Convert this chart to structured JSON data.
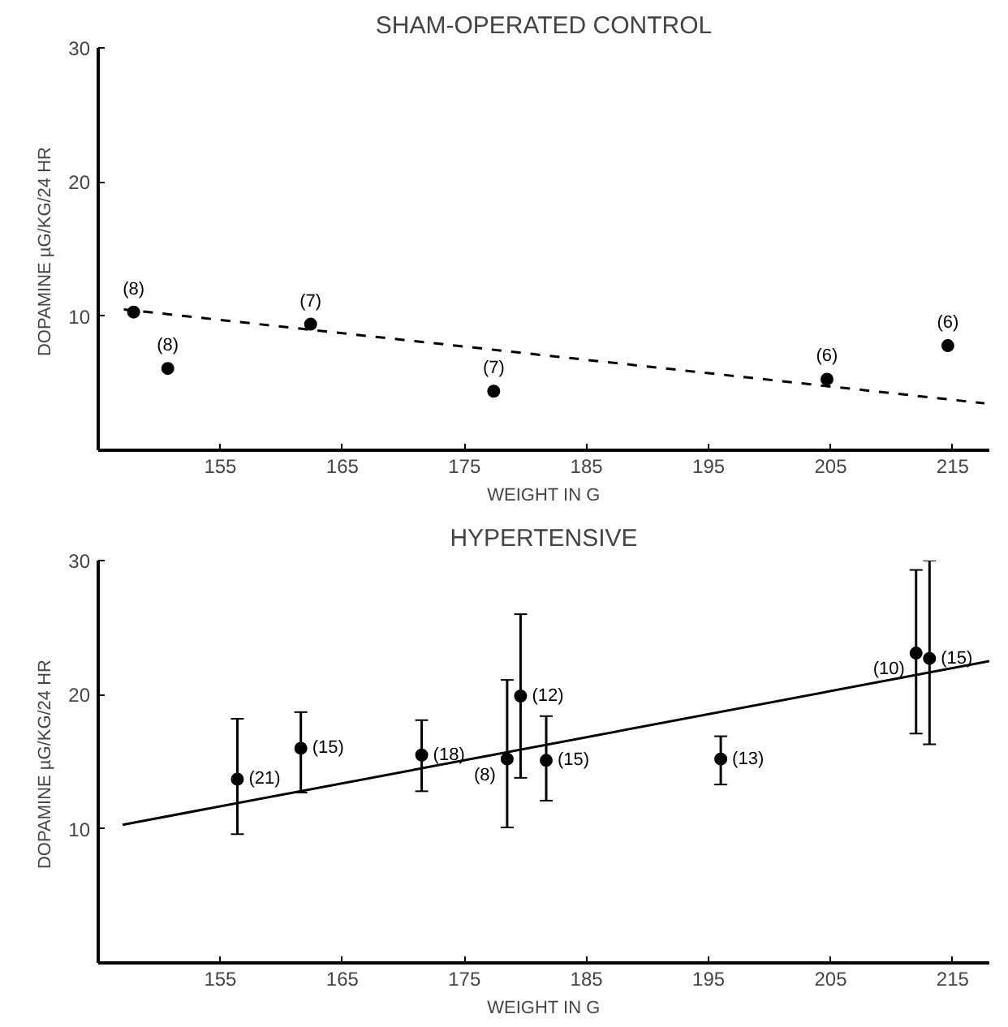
{
  "chart_data": [
    {
      "type": "scatter",
      "title": "SHAM-OPERATED CONTROL",
      "xlabel": "WEIGHT IN G",
      "ylabel": "DOPAMINE  µG/KG/24 HR",
      "xlim": [
        145,
        218
      ],
      "ylim": [
        0,
        30
      ],
      "xticks": [
        155,
        165,
        175,
        185,
        195,
        205,
        215
      ],
      "yticks": [
        10,
        20,
        30
      ],
      "grid": false,
      "series": [
        {
          "color": "#000000",
          "marker": "circle",
          "x": [
            147.9,
            150.7,
            162.4,
            177.4,
            204.7,
            214.6
          ],
          "values": [
            10.3,
            6.1,
            9.4,
            4.4,
            5.3,
            7.8
          ]
        },
        {
          "type": "line",
          "color": "#000000",
          "marker": "none",
          "line_style": "dashed",
          "x": [
            147.1,
            217.6
          ],
          "values": [
            10.5,
            3.5
          ]
        }
      ],
      "annotations": [
        {
          "text": "(8)",
          "x": 147.9,
          "y": 10.3
        },
        {
          "text": "(8)",
          "x": 150.7,
          "y": 6.1
        },
        {
          "text": "(7)",
          "x": 162.4,
          "y": 9.4
        },
        {
          "text": "(7)",
          "x": 177.4,
          "y": 4.4
        },
        {
          "text": "(6)",
          "x": 204.7,
          "y": 5.3
        },
        {
          "text": "(6)",
          "x": 214.6,
          "y": 7.8
        }
      ]
    },
    {
      "type": "scatter",
      "title": "HYPERTENSIVE",
      "xlabel": "WEIGHT IN G",
      "ylabel": "DOPAMINE  µG/KG/24 HR",
      "xlim": [
        145,
        218
      ],
      "ylim": [
        0,
        30
      ],
      "xticks": [
        155,
        165,
        175,
        185,
        195,
        205,
        215
      ],
      "yticks": [
        10,
        20,
        30
      ],
      "grid": false,
      "series": [
        {
          "color": "#000000",
          "marker": "circle",
          "x": [
            156.4,
            161.6,
            171.5,
            178.5,
            179.6,
            181.7,
            196.0,
            212.0,
            213.1
          ],
          "values": [
            13.7,
            16.0,
            15.5,
            15.2,
            19.9,
            15.1,
            15.2,
            23.1,
            22.7
          ],
          "errors": [
            [
              9.6,
              18.2
            ],
            [
              12.7,
              18.7
            ],
            [
              12.8,
              18.1
            ],
            [
              10.1,
              21.1
            ],
            [
              13.8,
              26.0
            ],
            [
              12.1,
              18.4
            ],
            [
              13.3,
              16.9
            ],
            [
              17.1,
              29.3
            ],
            [
              16.3,
              30.0
            ]
          ]
        },
        {
          "type": "line",
          "color": "#000000",
          "marker": "none",
          "line_style": "solid",
          "x": [
            147.0,
            218.0
          ],
          "values": [
            10.3,
            22.5
          ]
        }
      ],
      "annotations": [
        {
          "text": "(21)",
          "x": 156.4,
          "y": 13.7
        },
        {
          "text": "(15)",
          "x": 161.6,
          "y": 16.0
        },
        {
          "text": "(18)",
          "x": 171.5,
          "y": 15.5
        },
        {
          "text": "(8)",
          "x": 178.5,
          "y": 15.2
        },
        {
          "text": "(12)",
          "x": 179.6,
          "y": 19.9
        },
        {
          "text": "(15)",
          "x": 181.7,
          "y": 15.1
        },
        {
          "text": "(13)",
          "x": 196.0,
          "y": 15.2
        },
        {
          "text": "(10)",
          "x": 212.0,
          "y": 23.1
        },
        {
          "text": "(15)",
          "x": 213.1,
          "y": 22.7
        }
      ]
    }
  ]
}
